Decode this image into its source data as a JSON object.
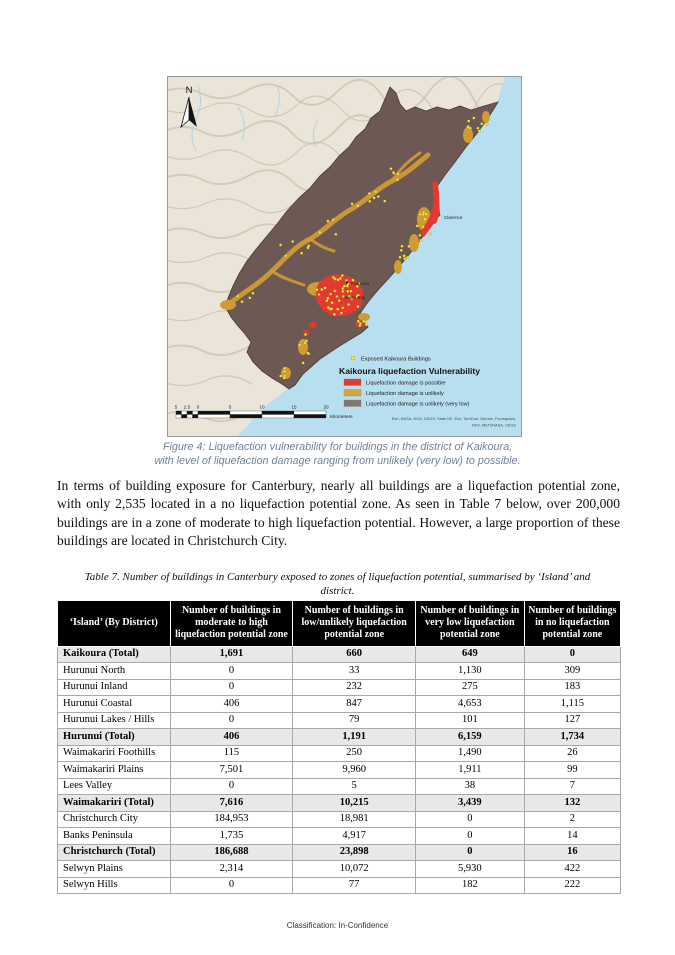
{
  "figure": {
    "caption_line1": "Figure 4: Liquefaction vulnerability for buildings in the district of Kaikoura,",
    "caption_line2": "with level of liquefaction damage ranging from unlikely (very low) to possible.",
    "map": {
      "north_label": "N",
      "place_labels": {
        "clarence": "Clarence",
        "kaikoura": "Kaikoura",
        "south_bay": "South Bay"
      },
      "scale": {
        "ticks": [
          "5",
          "2.5",
          "0",
          "5",
          "10",
          "15",
          "20"
        ],
        "unit": "Kilometers"
      },
      "legend": {
        "buildings_label": "Exposed Kaikoura Buildings",
        "title": "Kaikoura liquefaction Vulnerability",
        "items": [
          {
            "label": "Liquefaction damage is possible",
            "color": "#e23a31"
          },
          {
            "label": "Liquefaction damage is unlikely",
            "color": "#d8a63e"
          },
          {
            "label": "Liquefaction damage is unlikely (very low)",
            "color": "#8a7370"
          }
        ],
        "attribution_line1": "Esri, NASA, NGA, USGS, Stats NZ, Esri, TomTom, Garmin, Foursquare,",
        "attribution_line2": "FAO, METI/NASA, USGS"
      },
      "colors": {
        "sea": "#b8dff0",
        "district": "#6d5854",
        "damage_possible": "#e23a31",
        "damage_unlikely": "#cf9b33",
        "damage_very_low": "#8a7370",
        "building_dot": "#f8ef3c"
      }
    }
  },
  "paragraph": "In terms of building exposure for Canterbury, nearly all buildings are a liquefaction potential zone, with only 2,535 located in a no liquefaction potential zone. As seen in Table 7 below, over 200,000 buildings are in a zone of moderate to high liquefaction potential. However, a large proportion of these buildings are located in Christchurch City.",
  "table": {
    "caption": "Table 7. Number of buildings in Canterbury exposed to zones of liquefaction potential, summarised by ‘Island’ and district.",
    "headers": [
      "‘Island’ (By District)",
      "Number of buildings in moderate to high liquefaction potential zone",
      "Number of buildings in low/unlikely liquefaction potential zone",
      "Number of buildings in very low liquefaction potential zone",
      "Number of buildings in no liquefaction potential zone"
    ],
    "rows": [
      {
        "district": "Kaikoura (Total)",
        "values": [
          "1,691",
          "660",
          "649",
          "0"
        ],
        "is_total": true
      },
      {
        "district": "Hurunui North",
        "values": [
          "0",
          "33",
          "1,130",
          "309"
        ],
        "is_total": false
      },
      {
        "district": "Hurunui Inland",
        "values": [
          "0",
          "232",
          "275",
          "183"
        ],
        "is_total": false
      },
      {
        "district": "Hurunui Coastal",
        "values": [
          "406",
          "847",
          "4,653",
          "1,115"
        ],
        "is_total": false
      },
      {
        "district": "Hurunui Lakes / Hills",
        "values": [
          "0",
          "79",
          "101",
          "127"
        ],
        "is_total": false
      },
      {
        "district": "Hurunui (Total)",
        "values": [
          "406",
          "1,191",
          "6,159",
          "1,734"
        ],
        "is_total": true
      },
      {
        "district": "Waimakariri Foothills",
        "values": [
          "115",
          "250",
          "1,490",
          "26"
        ],
        "is_total": false
      },
      {
        "district": "Waimakariri Plains",
        "values": [
          "7,501",
          "9,960",
          "1,911",
          "99"
        ],
        "is_total": false
      },
      {
        "district": "Lees Valley",
        "values": [
          "0",
          "5",
          "38",
          "7"
        ],
        "is_total": false
      },
      {
        "district": "Waimakariri (Total)",
        "values": [
          "7,616",
          "10,215",
          "3,439",
          "132"
        ],
        "is_total": true
      },
      {
        "district": "Christchurch City",
        "values": [
          "184,953",
          "18,981",
          "0",
          "2"
        ],
        "is_total": false
      },
      {
        "district": "Banks Peninsula",
        "values": [
          "1,735",
          "4,917",
          "0",
          "14"
        ],
        "is_total": false
      },
      {
        "district": "Christchurch (Total)",
        "values": [
          "186,688",
          "23,898",
          "0",
          "16"
        ],
        "is_total": true
      },
      {
        "district": "Selwyn Plains",
        "values": [
          "2,314",
          "10,072",
          "5,930",
          "422"
        ],
        "is_total": false
      },
      {
        "district": "Selwyn Hills",
        "values": [
          "0",
          "77",
          "182",
          "222"
        ],
        "is_total": false
      }
    ]
  },
  "page": {
    "footer": "Classification: In-Confidence"
  }
}
